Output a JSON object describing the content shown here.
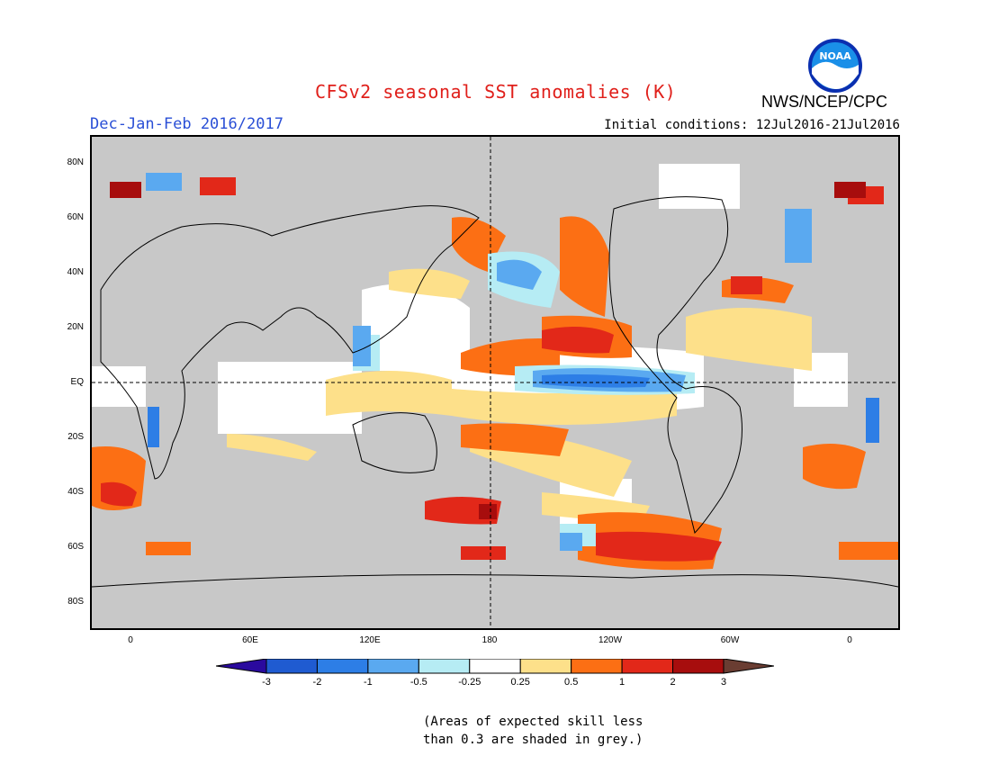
{
  "header": {
    "title": "CFSv2 seasonal SST anomalies (K)",
    "agency": "NWS/NCEP/CPC",
    "logo_text": "NOAA",
    "season": "Dec-Jan-Feb 2016/2017",
    "initial_conditions": "Initial conditions: 12Jul2016-21Jul2016"
  },
  "map": {
    "lat_labels": [
      "80N",
      "60N",
      "40N",
      "20N",
      "EQ",
      "20S",
      "40S",
      "60S",
      "80S"
    ],
    "lon_labels": [
      "0",
      "60E",
      "120E",
      "180",
      "120W",
      "60W",
      "0"
    ]
  },
  "legend": {
    "tick_labels": [
      "-3",
      "-2",
      "-1",
      "-0.5",
      "-0.25",
      "0.25",
      "0.5",
      "1",
      "2",
      "3"
    ],
    "colors": [
      "#2a0a9e",
      "#1f5bd1",
      "#2d7ee6",
      "#5aa9f0",
      "#b6ecf4",
      "#ffffff",
      "#fde08a",
      "#fc6f14",
      "#e22819",
      "#a70d0d",
      "#6a3d32"
    ]
  },
  "note": {
    "line1": "(Areas of expected skill less",
    "line2": "than 0.3 are shaded in grey.)"
  }
}
